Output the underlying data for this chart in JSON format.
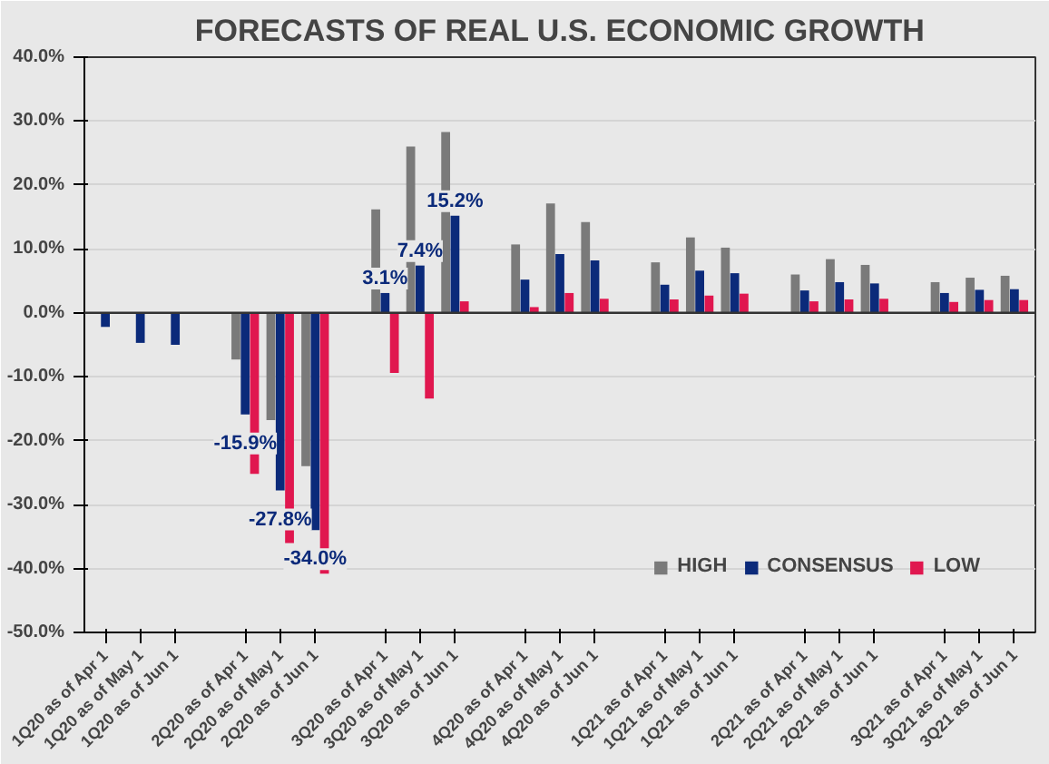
{
  "chart_data": {
    "type": "bar",
    "title": "FORECASTS OF REAL U.S. ECONOMIC GROWTH",
    "categories": [
      "1Q20 as of Apr 1",
      "1Q20 as of May 1",
      "1Q20 as of Jun 1",
      null,
      "2Q20 as of Apr 1",
      "2Q20 as of May 1",
      "2Q20 as of Jun 1",
      null,
      "3Q20 as of Apr 1",
      "3Q20 as of May 1",
      "3Q20 as of Jun 1",
      null,
      "4Q20 as of Apr 1",
      "4Q20 as of May 1",
      "4Q20 as of Jun 1",
      null,
      "1Q21 as of Apr 1",
      "1Q21 as of May 1",
      "1Q21 as of Jun 1",
      null,
      "2Q21 as of Apr 1",
      "2Q21 as of May 1",
      "2Q21 as of Jun 1",
      null,
      "3Q21 as of Apr 1",
      "3Q21 as of May 1",
      "3Q21 as of Jun 1"
    ],
    "series": [
      {
        "name": "HIGH",
        "color": "#7a7a7a",
        "values": [
          null,
          null,
          null,
          null,
          -7.3,
          -16.8,
          -24.0,
          null,
          16.2,
          26.0,
          28.3,
          null,
          10.7,
          17.1,
          14.2,
          null,
          7.9,
          11.8,
          10.2,
          null,
          6.0,
          8.4,
          7.5,
          null,
          4.8,
          5.5,
          5.8
        ]
      },
      {
        "name": "CONSENSUS",
        "color": "#0b2a7a",
        "values": [
          -2.2,
          -4.7,
          -5.0,
          null,
          -15.9,
          -27.8,
          -34.0,
          null,
          3.1,
          7.4,
          15.2,
          null,
          5.2,
          9.2,
          8.2,
          null,
          4.4,
          6.6,
          6.2,
          null,
          3.5,
          4.8,
          4.6,
          null,
          3.1,
          3.6,
          3.7
        ],
        "value_labels": [
          null,
          null,
          null,
          null,
          "-15.9%",
          "-27.8%",
          "-34.0%",
          null,
          "3.1%",
          "7.4%",
          "15.2%",
          null,
          null,
          null,
          null,
          null,
          null,
          null,
          null,
          null,
          null,
          null,
          null,
          null,
          null,
          null,
          null
        ]
      },
      {
        "name": "LOW",
        "color": "#e0174f",
        "values": [
          null,
          null,
          null,
          null,
          -25.2,
          -36.0,
          -40.8,
          null,
          -9.4,
          -13.4,
          1.8,
          null,
          0.9,
          3.1,
          2.2,
          null,
          2.1,
          2.7,
          3.0,
          null,
          1.8,
          2.1,
          2.2,
          null,
          1.7,
          2.0,
          2.0
        ]
      }
    ],
    "ylim": [
      -50,
      40
    ],
    "yticks": [
      {
        "value": -50,
        "label": "-50.0%"
      },
      {
        "value": -40,
        "label": "-40.0%"
      },
      {
        "value": -30,
        "label": "-30.0%"
      },
      {
        "value": -20,
        "label": "-20.0%"
      },
      {
        "value": -10,
        "label": "-10.0%"
      },
      {
        "value": 0,
        "label": "0.0%"
      },
      {
        "value": 10,
        "label": "10.0%"
      },
      {
        "value": 20,
        "label": "20.0%"
      },
      {
        "value": 30,
        "label": "30.0%"
      },
      {
        "value": 40,
        "label": "40.0%"
      }
    ],
    "grid": "y",
    "legend": "bottom right"
  }
}
